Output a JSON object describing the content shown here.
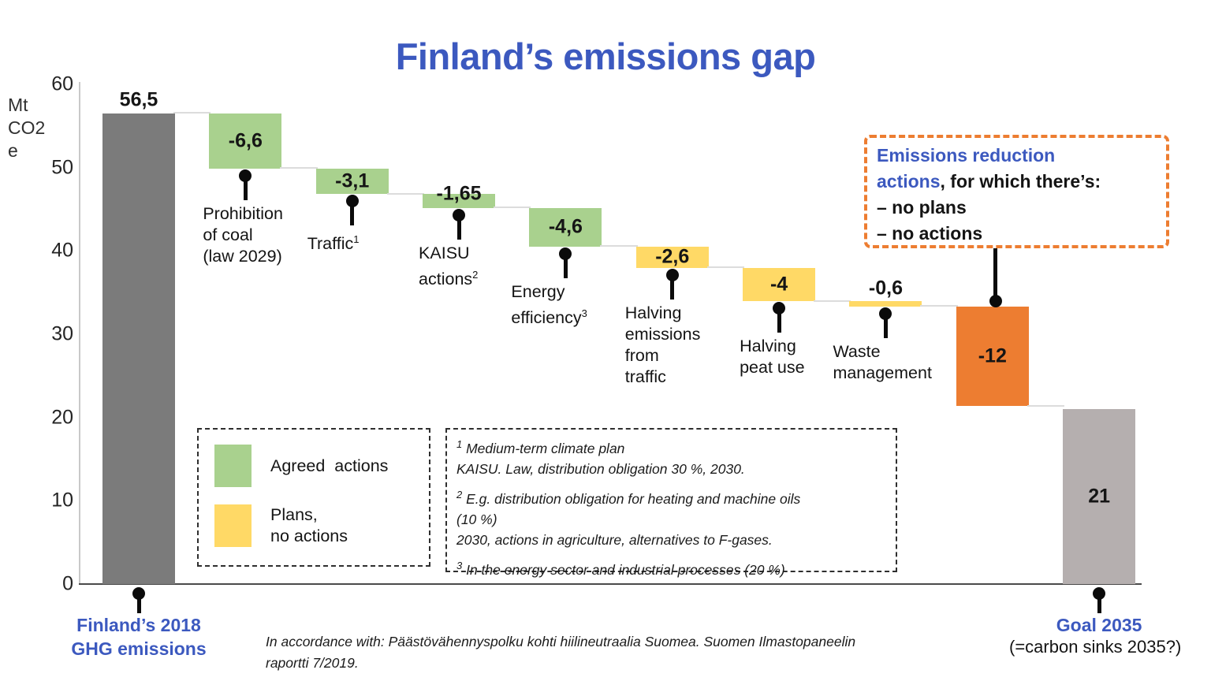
{
  "title": "Finland’s emissions gap",
  "y_axis": {
    "unit_lines": [
      "Mt",
      "CO2",
      "e"
    ],
    "ticks": [
      "60",
      "50",
      "40",
      "30",
      "20",
      "10",
      "0"
    ],
    "tick_values": [
      60,
      50,
      40,
      30,
      20,
      10,
      0
    ]
  },
  "colors": {
    "accent_blue": "#3C59BF",
    "start": "#7B7B7B",
    "agreed": "#A9D18E",
    "plans": "#FFD966",
    "gap": "#ED7D31",
    "goal": "#B5AFAF",
    "annotation_border": "#ED7D31"
  },
  "chart_data": {
    "type": "waterfall",
    "title": "Finland’s emissions gap",
    "unit": "Mt CO2e",
    "y_range": [
      0,
      60
    ],
    "steps": [
      {
        "name": "Finland’s 2018 GHG emissions",
        "kind": "start",
        "value": 56.5,
        "value_label": "56,5",
        "pin": "below-axis",
        "pin_label_style": "blue",
        "pin_label_lines": [
          "Finland’s 2018",
          "GHG emissions"
        ]
      },
      {
        "name": "Prohibition of coal (law 2029)",
        "kind": "agreed",
        "value": -6.6,
        "value_label": "-6,6",
        "pin": "below-bar",
        "pin_label_lines": [
          "Prohibition",
          "of coal",
          "(law 2029)"
        ]
      },
      {
        "name": "Traffic",
        "kind": "agreed",
        "value": -3.1,
        "value_label": "-3,1",
        "pin": "below-bar",
        "pin_label_lines": [
          "Traffic^1"
        ]
      },
      {
        "name": "KAISU actions",
        "kind": "agreed",
        "value": -1.65,
        "value_label": "-1,65",
        "pin": "below-bar",
        "pin_label_lines": [
          "KAISU",
          "actions^2"
        ]
      },
      {
        "name": "Energy efficiency",
        "kind": "agreed",
        "value": -4.6,
        "value_label": "-4,6",
        "pin": "below-bar",
        "pin_label_lines": [
          "Energy",
          "efficiency^3"
        ]
      },
      {
        "name": "Halving emissions from traffic",
        "kind": "plans",
        "value": -2.6,
        "value_label": "-2,6",
        "pin": "below-bar",
        "pin_label_lines": [
          "Halving",
          "emissions",
          "from",
          "traffic"
        ]
      },
      {
        "name": "Halving peat use",
        "kind": "plans",
        "value": -4,
        "value_label": "-4",
        "pin": "below-bar",
        "pin_label_lines": [
          "Halving",
          "peat use"
        ]
      },
      {
        "name": "Waste management",
        "kind": "plans",
        "value": -0.6,
        "value_label": "-0,6",
        "pin": "below-bar",
        "pin_label_lines": [
          "Waste",
          "management"
        ]
      },
      {
        "name": "Emissions reduction actions, for which there’s no plans, no actions",
        "kind": "gap",
        "value": -12,
        "value_label": "-12",
        "pin": "to-annotation"
      },
      {
        "name": "Goal 2035",
        "kind": "goal",
        "value": 21,
        "value_label": "21",
        "absolute": true,
        "pin": "below-axis",
        "pin_label_style": "blue",
        "pin_label_lines": [
          "Goal 2035"
        ],
        "pin_sub_label": "(=carbon sinks 2035?)"
      }
    ]
  },
  "annotation": {
    "lines": [
      [
        {
          "text": "Emissions reduction",
          "color": "blue"
        }
      ],
      [
        {
          "text": "actions",
          "color": "blue"
        },
        {
          "text": ", for which there’s:",
          "color": "black"
        }
      ],
      [
        {
          "text": "– no plans",
          "color": "black"
        }
      ],
      [
        {
          "text": "– no actions",
          "color": "black"
        }
      ]
    ]
  },
  "legend": {
    "items": [
      {
        "swatch": "agreed",
        "label": "Agreed  actions"
      },
      {
        "swatch": "plans",
        "label": "Plans,\nno actions"
      }
    ]
  },
  "footnotes": [
    {
      "sup": "1",
      "text": "Medium-term climate plan\nKAISU. Law, distribution obligation 30 %, 2030."
    },
    {
      "sup": "2",
      "text": "E.g. distribution obligation for heating and machine oils\n(10 %)\n2030, actions in agriculture, alternatives to F-gases."
    },
    {
      "sup": "3",
      "text": "In the energy sector and industrial processes (20 %)"
    }
  ],
  "source": {
    "lines": [
      "In accordance with: Päästövähennyspolku kohti hiilineutraalia Suomea. Suomen Ilmastopaneelin",
      "raportti 7/2019."
    ]
  }
}
